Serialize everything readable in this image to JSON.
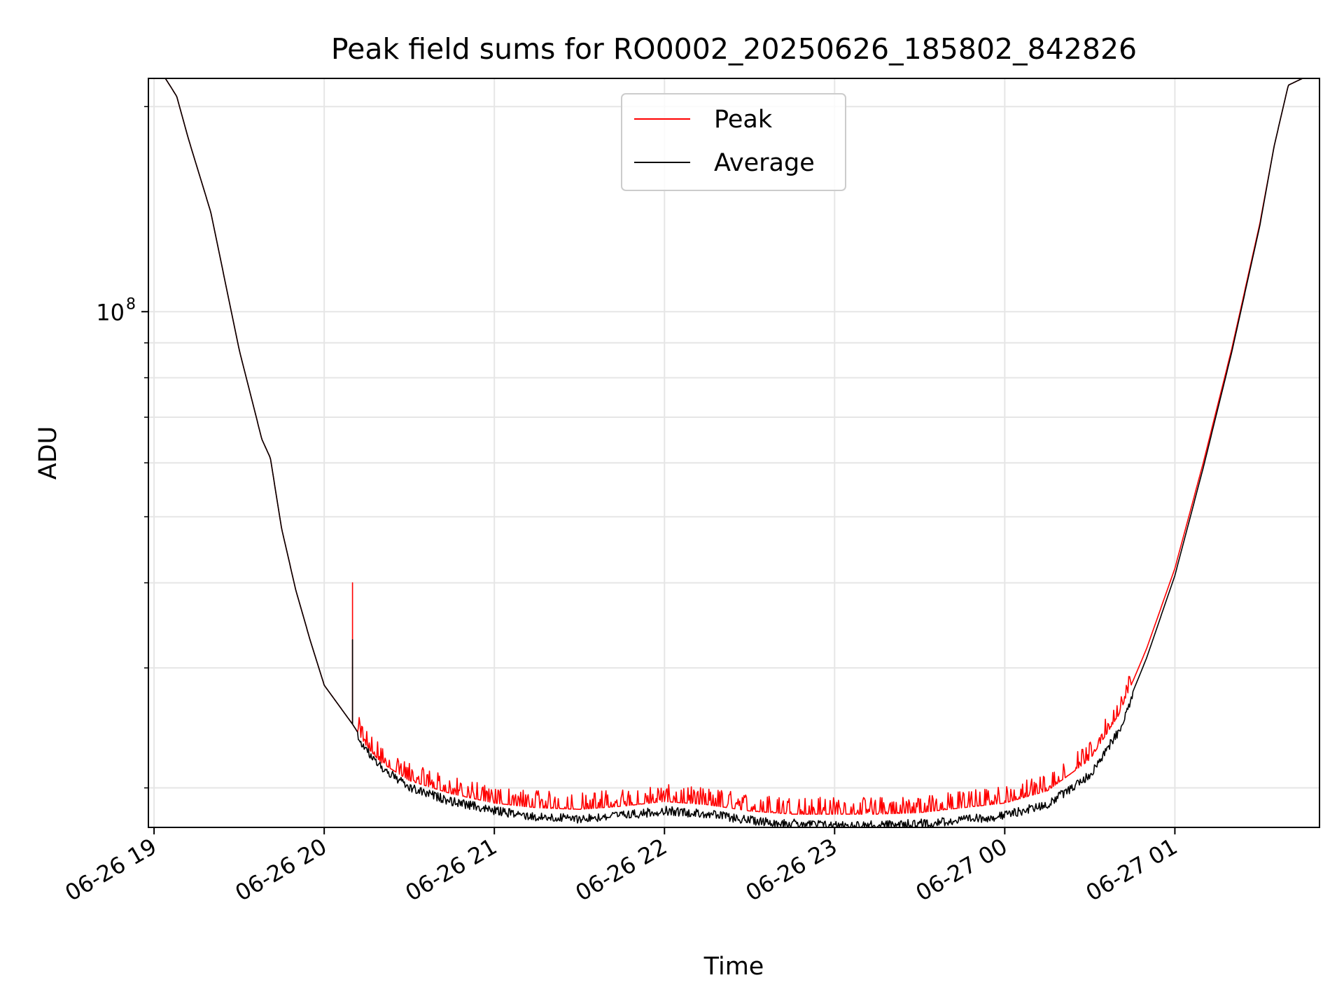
{
  "chart_data": {
    "type": "line",
    "title": "Peak field sums for RO0002_20250626_185802_842826",
    "xlabel": "Time",
    "ylabel": "ADU",
    "y_scale": "log",
    "ylim": [
      17500000,
      220000000
    ],
    "xlim": [
      "2025-06-26 18:58",
      "2025-06-27 01:51"
    ],
    "x_ticks": [
      "2025-06-26 19:00",
      "2025-06-26 20:00",
      "2025-06-26 21:00",
      "2025-06-26 22:00",
      "2025-06-26 23:00",
      "2025-06-27 00:00",
      "2025-06-27 01:00"
    ],
    "x_tick_labels": [
      "06-26 19",
      "06-26 20",
      "06-26 21",
      "06-26 22",
      "06-26 23",
      "06-27 00",
      "06-27 01"
    ],
    "y_tick_labels": [
      {
        "value": 100000000,
        "base": "10",
        "exp": "8"
      }
    ],
    "grid": true,
    "legend": {
      "placement": "upper center",
      "entries": [
        "Peak",
        "Average"
      ]
    },
    "colors": {
      "Peak": "#ff0000",
      "Average": "#000000",
      "grid": "#e6e6e6"
    },
    "series": [
      {
        "name": "Peak",
        "color": "#ff0000",
        "noise_up": 0.06,
        "x": [
          "2025-06-26 18:58",
          "2025-06-26 19:04",
          "2025-06-26 19:08",
          "2025-06-26 19:12",
          "2025-06-26 19:20",
          "2025-06-26 19:30",
          "2025-06-26 19:38",
          "2025-06-26 19:41",
          "2025-06-26 19:45",
          "2025-06-26 19:50",
          "2025-06-26 19:55",
          "2025-06-26 20:00",
          "2025-06-26 20:07",
          "2025-06-26 20:10",
          "2025-06-26 20:15",
          "2025-06-26 20:20",
          "2025-06-26 20:30",
          "2025-06-26 20:45",
          "2025-06-26 21:00",
          "2025-06-26 21:15",
          "2025-06-26 21:30",
          "2025-06-26 21:45",
          "2025-06-26 22:00",
          "2025-06-26 22:15",
          "2025-06-26 22:30",
          "2025-06-26 22:45",
          "2025-06-26 23:00",
          "2025-06-26 23:15",
          "2025-06-26 23:30",
          "2025-06-26 23:45",
          "2025-06-27 00:00",
          "2025-06-27 00:15",
          "2025-06-27 00:30",
          "2025-06-27 00:40",
          "2025-06-27 00:50",
          "2025-06-27 01:00",
          "2025-06-27 01:10",
          "2025-06-27 01:20",
          "2025-06-27 01:30",
          "2025-06-27 01:35",
          "2025-06-27 01:40",
          "2025-06-27 01:45",
          "2025-06-27 01:51"
        ],
        "values": [
          220000000,
          220000000,
          207000000,
          180000000,
          140000000,
          88000000,
          65000000,
          61000000,
          48000000,
          39000000,
          33000000,
          28300000,
          25800000,
          24800000,
          23000000,
          21800000,
          20500000,
          19600000,
          19000000,
          18700000,
          18600000,
          18800000,
          19100000,
          18900000,
          18500000,
          18300000,
          18300000,
          18300000,
          18400000,
          18700000,
          19000000,
          19800000,
          22000000,
          25500000,
          32000000,
          42000000,
          60000000,
          88000000,
          135000000,
          175000000,
          215000000,
          220000000,
          220000000
        ]
      },
      {
        "name": "Average",
        "color": "#000000",
        "noise_down": 0.03,
        "x": [
          "2025-06-26 18:58",
          "2025-06-26 19:04",
          "2025-06-26 19:08",
          "2025-06-26 19:12",
          "2025-06-26 19:20",
          "2025-06-26 19:30",
          "2025-06-26 19:38",
          "2025-06-26 19:41",
          "2025-06-26 19:45",
          "2025-06-26 19:50",
          "2025-06-26 19:55",
          "2025-06-26 20:00",
          "2025-06-26 20:07",
          "2025-06-26 20:10",
          "2025-06-26 20:15",
          "2025-06-26 20:20",
          "2025-06-26 20:30",
          "2025-06-26 20:45",
          "2025-06-26 21:00",
          "2025-06-26 21:15",
          "2025-06-26 21:30",
          "2025-06-26 21:45",
          "2025-06-26 22:00",
          "2025-06-26 22:15",
          "2025-06-26 22:30",
          "2025-06-26 22:45",
          "2025-06-26 23:00",
          "2025-06-26 23:15",
          "2025-06-26 23:30",
          "2025-06-26 23:45",
          "2025-06-27 00:00",
          "2025-06-27 00:15",
          "2025-06-27 00:30",
          "2025-06-27 00:40",
          "2025-06-27 00:50",
          "2025-06-27 01:00",
          "2025-06-27 01:10",
          "2025-06-27 01:20",
          "2025-06-27 01:30",
          "2025-06-27 01:35",
          "2025-06-27 01:40",
          "2025-06-27 01:45",
          "2025-06-27 01:51"
        ],
        "values": [
          220000000,
          220000000,
          207000000,
          180000000,
          140000000,
          88000000,
          65000000,
          61000000,
          48000000,
          39000000,
          33000000,
          28300000,
          25800000,
          24800000,
          23000000,
          21800000,
          20300000,
          19400000,
          18800000,
          18400000,
          18300000,
          18500000,
          18800000,
          18600000,
          18200000,
          18000000,
          17900000,
          17900000,
          18000000,
          18200000,
          18500000,
          19200000,
          21200000,
          24500000,
          31000000,
          41000000,
          59000000,
          87000000,
          134000000,
          175000000,
          215000000,
          220000000,
          220000000
        ]
      }
    ],
    "annotations_spike": {
      "x": "2025-06-26 20:10",
      "peak": 40000000,
      "average": 33000000
    }
  }
}
